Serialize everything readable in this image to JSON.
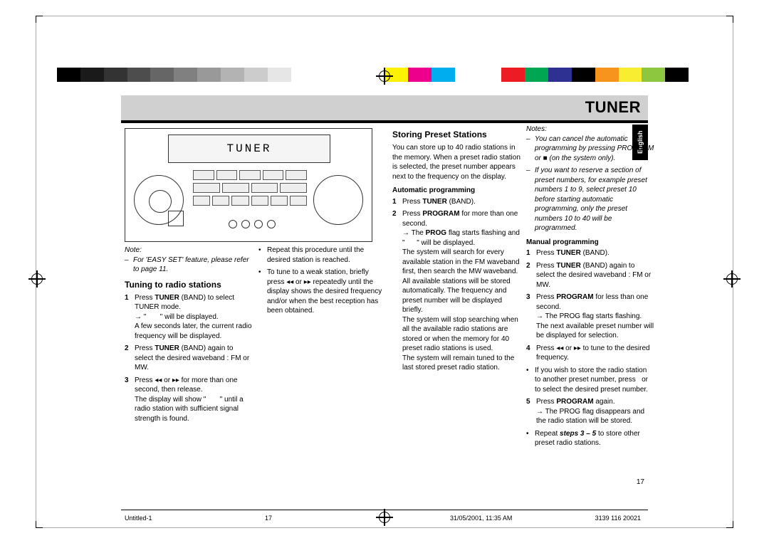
{
  "header": {
    "title": "TUNER",
    "language_tab": "English"
  },
  "device": {
    "lcd_text": "TUNER"
  },
  "colorbar": [
    "#000000",
    "#1a1a1a",
    "#333333",
    "#4d4d4d",
    "#666666",
    "#808080",
    "#999999",
    "#b3b3b3",
    "#cccccc",
    "#e6e6e6",
    "#ffffff",
    "#ffffff",
    "#ffffff",
    "#ffffff",
    "#fff200",
    "#ec008c",
    "#00aeef",
    "#ffffff",
    "#ffffff",
    "#ed1c24",
    "#00a651",
    "#2e3192",
    "#000000",
    "#f7941d",
    "#f9ed32",
    "#8dc63f",
    "#000000",
    "#ffffff"
  ],
  "col1": {
    "note_label": "Note:",
    "note_text": "For 'EASY SET' feature, please refer to page 11.",
    "section_title": "Tuning to radio stations",
    "steps": [
      {
        "n": "1",
        "html": "Press <b>TUNER</b> (BAND) to select TUNER mode.<br>→ \"&nbsp;&nbsp;&nbsp;&nbsp;&nbsp;&nbsp;&nbsp;\" will be displayed.<br>A few seconds later, the current radio frequency will be displayed."
      },
      {
        "n": "2",
        "html": "Press <b>TUNER</b> (BAND) again to select the desired waveband : FM or MW."
      },
      {
        "n": "3",
        "html": "Press ◂◂ or ▸▸ for more than one second, then release.<br>The display will show \"&nbsp;&nbsp;&nbsp;&nbsp;&nbsp;&nbsp;&nbsp;\" until a radio station with sufficient signal strength is found."
      }
    ]
  },
  "col2": {
    "bullets": [
      "Repeat this procedure until the desired station is reached.",
      "To tune to a weak station, briefly press ◂◂ or ▸▸ repeatedly until the display shows the desired frequency and/or when the best reception has been obtained."
    ]
  },
  "col3": {
    "section_title": "Storing Preset Stations",
    "intro": "You can store up to 40 radio stations in the memory. When a preset radio station is selected, the preset number appears next to the frequency on the display.",
    "sub_title": "Automatic programming",
    "steps": [
      {
        "n": "1",
        "html": "Press <b>TUNER</b> (BAND)."
      },
      {
        "n": "2",
        "html": "Press <b>PROGRAM</b> for more than one second.<br>→ The <b>PROG</b> flag starts flashing and \"&nbsp;&nbsp;&nbsp;&nbsp;&nbsp;&nbsp;\" will be displayed.<br>The system will search for every available station in the FM waveband first, then search the MW waveband. All available stations will be stored automatically. The frequency and preset number will be displayed briefly.<br>The system will stop searching when all the available radio stations are stored or when the memory for 40 preset radio stations is used.<br>The system will remain tuned to the last stored preset radio station."
      }
    ]
  },
  "col4": {
    "notes_label": "Notes:",
    "notes": [
      "You can cancel the automatic programming by pressing PROGRAM or ■ (on the system only).",
      "If you want to reserve a section of preset numbers, for example preset numbers 1 to 9, select preset 10 before starting automatic programming, only the preset numbers 10 to 40 will be programmed."
    ],
    "sub_title": "Manual programming",
    "steps": [
      {
        "n": "1",
        "html": "Press <b>TUNER</b> (BAND)."
      },
      {
        "n": "2",
        "html": "Press <b>TUNER</b> (BAND) again to select the desired waveband : FM or MW."
      },
      {
        "n": "3",
        "html": "Press <b>PROGRAM</b> for less than one second.<br>→ The PROG flag starts flashing.<br>The next available preset number will be displayed for selection."
      },
      {
        "n": "4",
        "html": "Press ◂◂ or ▸▸ to tune to the desired frequency."
      }
    ],
    "bullet1": "If you wish to store the radio station to another preset number, press &nbsp; or &nbsp; to select the desired preset number.",
    "step5": {
      "n": "5",
      "html": "Press <b>PROGRAM</b> again.<br>→ The PROG flag disappears and the radio station will be stored."
    },
    "bullet2": "Repeat <b><i>steps 3 – 5</i></b> to store other preset radio stations."
  },
  "footer": {
    "page": "17",
    "f1": "Untitled-1",
    "f2": "17",
    "f3": "31/05/2001, 11:35 AM",
    "f4": "3139 116 20021"
  }
}
